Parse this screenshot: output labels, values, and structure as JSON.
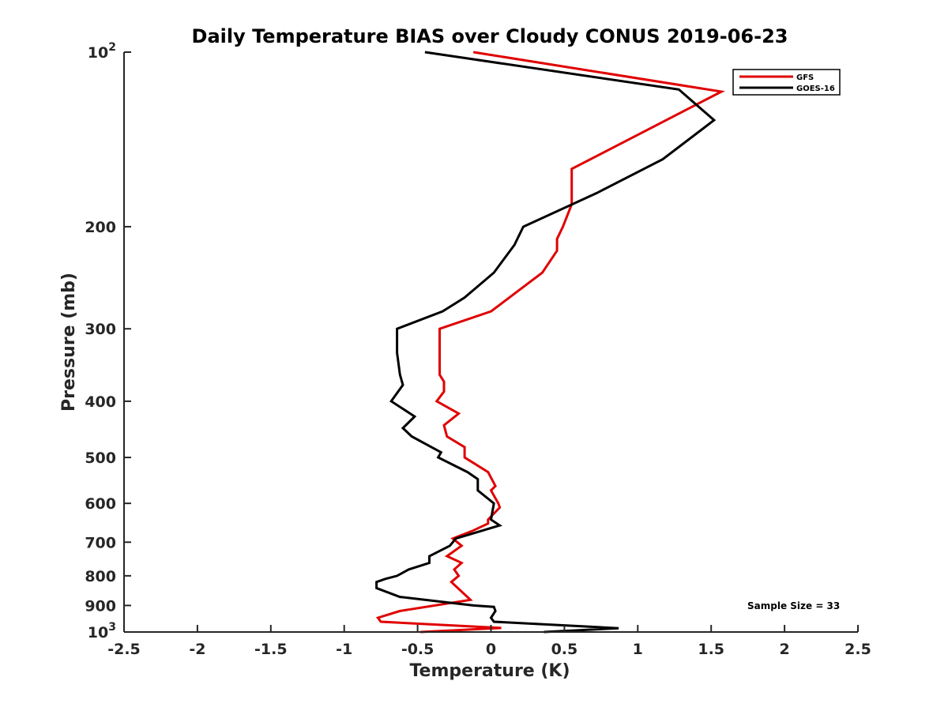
{
  "chart_data": {
    "type": "line",
    "title": "Daily Temperature BIAS over Cloudy CONUS 2019-06-23",
    "xlabel": "Temperature (K)",
    "ylabel": "Pressure (mb)",
    "xlim": [
      -2.5,
      2.5
    ],
    "ylim": [
      100,
      1000
    ],
    "yscale": "log",
    "y_reversed": true,
    "grid": false,
    "legend_position": "top-right",
    "x_ticks": [
      "-2.5",
      "-2",
      "-1.5",
      "-1",
      "-0.5",
      "0",
      "0.5",
      "1",
      "1.5",
      "2",
      "2.5"
    ],
    "x_tick_values": [
      -2.5,
      -2,
      -1.5,
      -1,
      -0.5,
      0,
      0.5,
      1,
      1.5,
      2,
      2.5
    ],
    "y_ticks": [
      {
        "value": 100,
        "base": "10",
        "exp": "2"
      },
      {
        "value": 200,
        "label": "200"
      },
      {
        "value": 300,
        "label": "300"
      },
      {
        "value": 400,
        "label": "400"
      },
      {
        "value": 500,
        "label": "500"
      },
      {
        "value": 600,
        "label": "600"
      },
      {
        "value": 700,
        "label": "700"
      },
      {
        "value": 800,
        "label": "800"
      },
      {
        "value": 900,
        "label": "900"
      },
      {
        "value": 1000,
        "base": "10",
        "exp": "3"
      }
    ],
    "series": [
      {
        "name": "GFS",
        "color": "#e00000",
        "points": [
          [
            -0.12,
            100
          ],
          [
            1.57,
            117
          ],
          [
            0.55,
            159
          ],
          [
            0.55,
            183
          ],
          [
            0.49,
            200
          ],
          [
            0.45,
            210
          ],
          [
            0.45,
            220
          ],
          [
            0.35,
            240
          ],
          [
            0.0,
            280
          ],
          [
            -0.35,
            300
          ],
          [
            -0.35,
            330
          ],
          [
            -0.35,
            360
          ],
          [
            -0.32,
            370
          ],
          [
            -0.32,
            385
          ],
          [
            -0.37,
            400
          ],
          [
            -0.22,
            420
          ],
          [
            -0.32,
            440
          ],
          [
            -0.3,
            460
          ],
          [
            -0.18,
            480
          ],
          [
            -0.18,
            500
          ],
          [
            -0.02,
            530
          ],
          [
            0.03,
            560
          ],
          [
            0.0,
            570
          ],
          [
            0.05,
            600
          ],
          [
            0.06,
            610
          ],
          [
            -0.02,
            640
          ],
          [
            -0.02,
            650
          ],
          [
            -0.13,
            670
          ],
          [
            -0.26,
            690
          ],
          [
            -0.2,
            710
          ],
          [
            -0.3,
            740
          ],
          [
            -0.2,
            760
          ],
          [
            -0.25,
            780
          ],
          [
            -0.22,
            800
          ],
          [
            -0.27,
            820
          ],
          [
            -0.14,
            880
          ],
          [
            -0.62,
            920
          ],
          [
            -0.77,
            945
          ],
          [
            -0.75,
            960
          ],
          [
            0.07,
            984
          ],
          [
            -0.48,
            1000
          ]
        ]
      },
      {
        "name": "GOES-16",
        "color": "#000000",
        "points": [
          [
            -0.45,
            100
          ],
          [
            1.28,
            116
          ],
          [
            1.52,
            131
          ],
          [
            1.17,
            153
          ],
          [
            0.72,
            175
          ],
          [
            0.22,
            200
          ],
          [
            0.16,
            215
          ],
          [
            0.02,
            240
          ],
          [
            -0.18,
            265
          ],
          [
            -0.33,
            280
          ],
          [
            -0.64,
            300
          ],
          [
            -0.64,
            330
          ],
          [
            -0.62,
            360
          ],
          [
            -0.6,
            375
          ],
          [
            -0.68,
            400
          ],
          [
            -0.52,
            425
          ],
          [
            -0.6,
            445
          ],
          [
            -0.54,
            460
          ],
          [
            -0.34,
            490
          ],
          [
            -0.36,
            500
          ],
          [
            -0.16,
            530
          ],
          [
            -0.09,
            545
          ],
          [
            -0.09,
            570
          ],
          [
            0.02,
            600
          ],
          [
            0.0,
            640
          ],
          [
            0.06,
            655
          ],
          [
            -0.24,
            690
          ],
          [
            -0.28,
            710
          ],
          [
            -0.42,
            740
          ],
          [
            -0.42,
            760
          ],
          [
            -0.56,
            780
          ],
          [
            -0.64,
            800
          ],
          [
            -0.72,
            810
          ],
          [
            -0.78,
            820
          ],
          [
            -0.78,
            840
          ],
          [
            -0.62,
            870
          ],
          [
            -0.12,
            900
          ],
          [
            0.02,
            905
          ],
          [
            0.03,
            920
          ],
          [
            0.0,
            945
          ],
          [
            0.02,
            960
          ],
          [
            0.87,
            985
          ],
          [
            0.36,
            1000
          ]
        ]
      }
    ],
    "annotations": [
      "Sample Size = 33"
    ]
  }
}
